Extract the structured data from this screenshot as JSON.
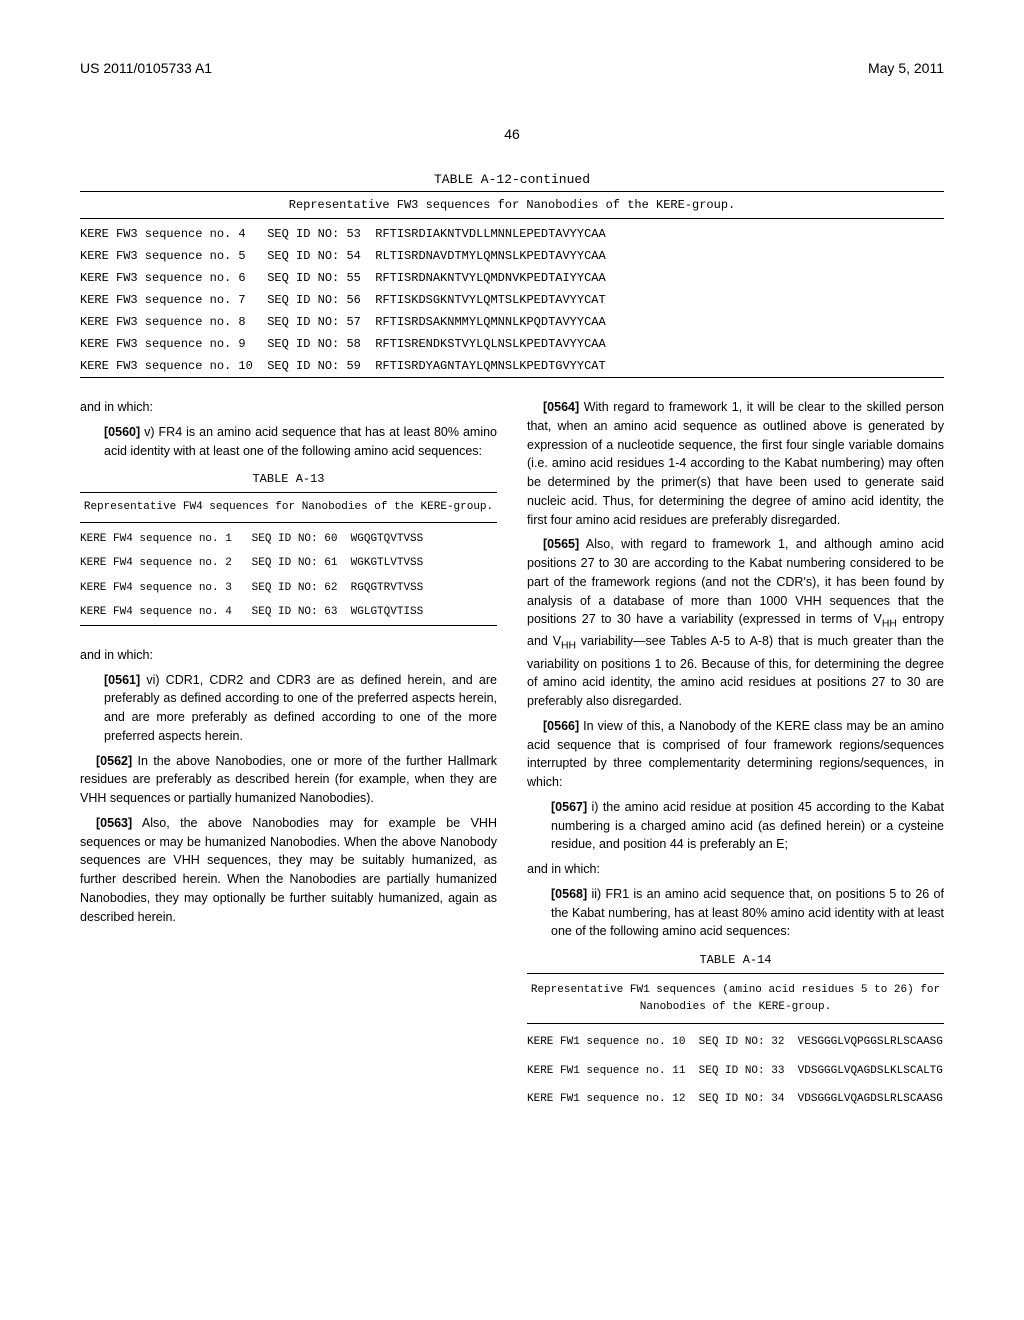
{
  "header": {
    "doc_id": "US 2011/0105733 A1",
    "date": "May 5, 2011"
  },
  "page_number": "46",
  "table_a12": {
    "caption": "TABLE A-12-continued",
    "subtitle": "Representative FW3 sequences for Nanobodies of the KERE-group.",
    "rows": [
      {
        "label": "KERE FW3 sequence no. 4",
        "seqid": "SEQ ID NO: 53",
        "seq": "RFTISRDIAKNTVDLLMNNLEPEDTAVYYCAA"
      },
      {
        "label": "KERE FW3 sequence no. 5",
        "seqid": "SEQ ID NO: 54",
        "seq": "RLTISRDNAVDTMYLQMNSLKPEDTAVYYCAA"
      },
      {
        "label": "KERE FW3 sequence no. 6",
        "seqid": "SEQ ID NO: 55",
        "seq": "RFTISRDNAKNTVYLQMDNVKPEDTAIYYCAA"
      },
      {
        "label": "KERE FW3 sequence no. 7",
        "seqid": "SEQ ID NO: 56",
        "seq": "RFTISKDSGKNTVYLQMTSLKPEDTAVYYCAT"
      },
      {
        "label": "KERE FW3 sequence no. 8",
        "seqid": "SEQ ID NO: 57",
        "seq": "RFTISRDSAKNMMYLQMNNLKPQDTAVYYCAA"
      },
      {
        "label": "KERE FW3 sequence no. 9",
        "seqid": "SEQ ID NO: 58",
        "seq": "RFTISRENDKSTVYLQLNSLKPEDTAVYYCAA"
      },
      {
        "label": "KERE FW3 sequence no. 10",
        "seqid": "SEQ ID NO: 59",
        "seq": "RFTISRDYAGNTAYLQMNSLKPEDTGVYYCAT"
      }
    ]
  },
  "left_col": {
    "intro1": "and in which:",
    "para_0560": {
      "num": "[0560]",
      "text": "v) FR4 is an amino acid sequence that has at least 80% amino acid identity with at least one of the following amino acid sequences:"
    },
    "table_a13": {
      "caption": "TABLE A-13",
      "subtitle": "Representative FW4 sequences for Nanobodies of the KERE-group.",
      "rows": [
        {
          "label": "KERE FW4 sequence no. 1",
          "seqid": "SEQ ID NO: 60",
          "seq": "WGQGTQVTVSS"
        },
        {
          "label": "KERE FW4 sequence no. 2",
          "seqid": "SEQ ID NO: 61",
          "seq": "WGKGTLVTVSS"
        },
        {
          "label": "KERE FW4 sequence no. 3",
          "seqid": "SEQ ID NO: 62",
          "seq": "RGQGTRVTVSS"
        },
        {
          "label": "KERE FW4 sequence no. 4",
          "seqid": "SEQ ID NO: 63",
          "seq": "WGLGTQVTISS"
        }
      ]
    },
    "intro2": "and in which:",
    "para_0561": {
      "num": "[0561]",
      "text": "vi) CDR1, CDR2 and CDR3 are as defined herein, and are preferably as defined according to one of the preferred aspects herein, and are more preferably as defined according to one of the more preferred aspects herein."
    },
    "para_0562": {
      "num": "[0562]",
      "text": "In the above Nanobodies, one or more of the further Hallmark residues are preferably as described herein (for example, when they are VHH sequences or partially humanized Nanobodies)."
    },
    "para_0563": {
      "num": "[0563]",
      "text": "Also, the above Nanobodies may for example be VHH sequences or may be humanized Nanobodies. When the above Nanobody sequences are VHH sequences, they may be suitably humanized, as further described herein. When the Nanobodies are partially humanized Nanobodies, they may optionally be further suitably humanized, again as described herein."
    }
  },
  "right_col": {
    "para_0564": {
      "num": "[0564]",
      "text": "With regard to framework 1, it will be clear to the skilled person that, when an amino acid sequence as outlined above is generated by expression of a nucleotide sequence, the first four single variable domains (i.e. amino acid residues 1-4 according to the Kabat numbering) may often be determined by the primer(s) that have been used to generate said nucleic acid. Thus, for determining the degree of amino acid identity, the first four amino acid residues are preferably disregarded."
    },
    "para_0565": {
      "num": "[0565]",
      "text_pre": "Also, with regard to framework 1, and although amino acid positions 27 to 30 are according to the Kabat numbering considered to be part of the framework regions (and not the CDR's), it has been found by analysis of a database of more than 1000 VHH sequences that the positions 27 to 30 have a variability (expressed in terms of V",
      "sub1": "HH",
      "text_mid": " entropy and V",
      "sub2": "HH",
      "text_post": " variability—see Tables A-5 to A-8) that is much greater than the variability on positions 1 to 26. Because of this, for determining the degree of amino acid identity, the amino acid residues at positions 27 to 30 are preferably also disregarded."
    },
    "para_0566": {
      "num": "[0566]",
      "text": "In view of this, a Nanobody of the KERE class may be an amino acid sequence that is comprised of four framework regions/sequences interrupted by three complementarity determining regions/sequences, in which:"
    },
    "para_0567": {
      "num": "[0567]",
      "text": "i) the amino acid residue at position 45 according to the Kabat numbering is a charged amino acid (as defined herein) or a cysteine residue, and position 44 is preferably an E;"
    },
    "intro3": "and in which:",
    "para_0568": {
      "num": "[0568]",
      "text": "ii) FR1 is an amino acid sequence that, on positions 5 to 26 of the Kabat numbering, has at least 80% amino acid identity with at least one of the following amino acid sequences:"
    },
    "table_a14": {
      "caption": "TABLE A-14",
      "subtitle": "Representative FW1 sequences (amino acid residues 5 to 26) for Nanobodies of the KERE-group.",
      "rows": [
        {
          "label": "KERE FW1 sequence no. 10",
          "seqid": "SEQ ID NO: 32",
          "seq": "VESGGGLVQPGGSLRLSCAASG"
        },
        {
          "label": "KERE FW1 sequence no. 11",
          "seqid": "SEQ ID NO: 33",
          "seq": "VDSGGGLVQAGDSLKLSCALTG"
        },
        {
          "label": "KERE FW1 sequence no. 12",
          "seqid": "SEQ ID NO: 34",
          "seq": "VDSGGGLVQAGDSLRLSCAASG"
        }
      ]
    }
  }
}
